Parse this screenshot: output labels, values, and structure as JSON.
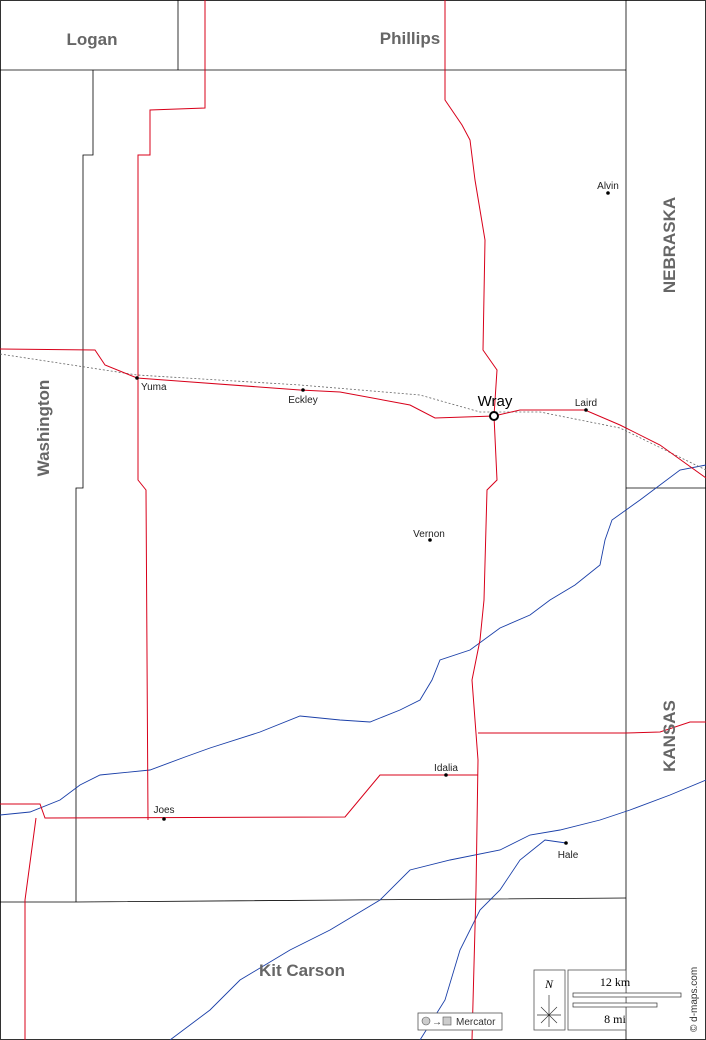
{
  "regions": {
    "north_west": "Logan",
    "north": "Phillips",
    "west": "Washington",
    "south": "Kit Carson",
    "state_north": "NEBRASKA",
    "state_south": "KANSAS"
  },
  "places": [
    "Alvin",
    "Yuma",
    "Eckley",
    "Wray",
    "Laird",
    "Vernon",
    "Idalia",
    "Joes",
    "Hale"
  ],
  "legend": {
    "north": "N",
    "scale_km": "12 km",
    "scale_mi": "8 mi",
    "projection": "Mercator",
    "credit": "© d-maps.com"
  }
}
